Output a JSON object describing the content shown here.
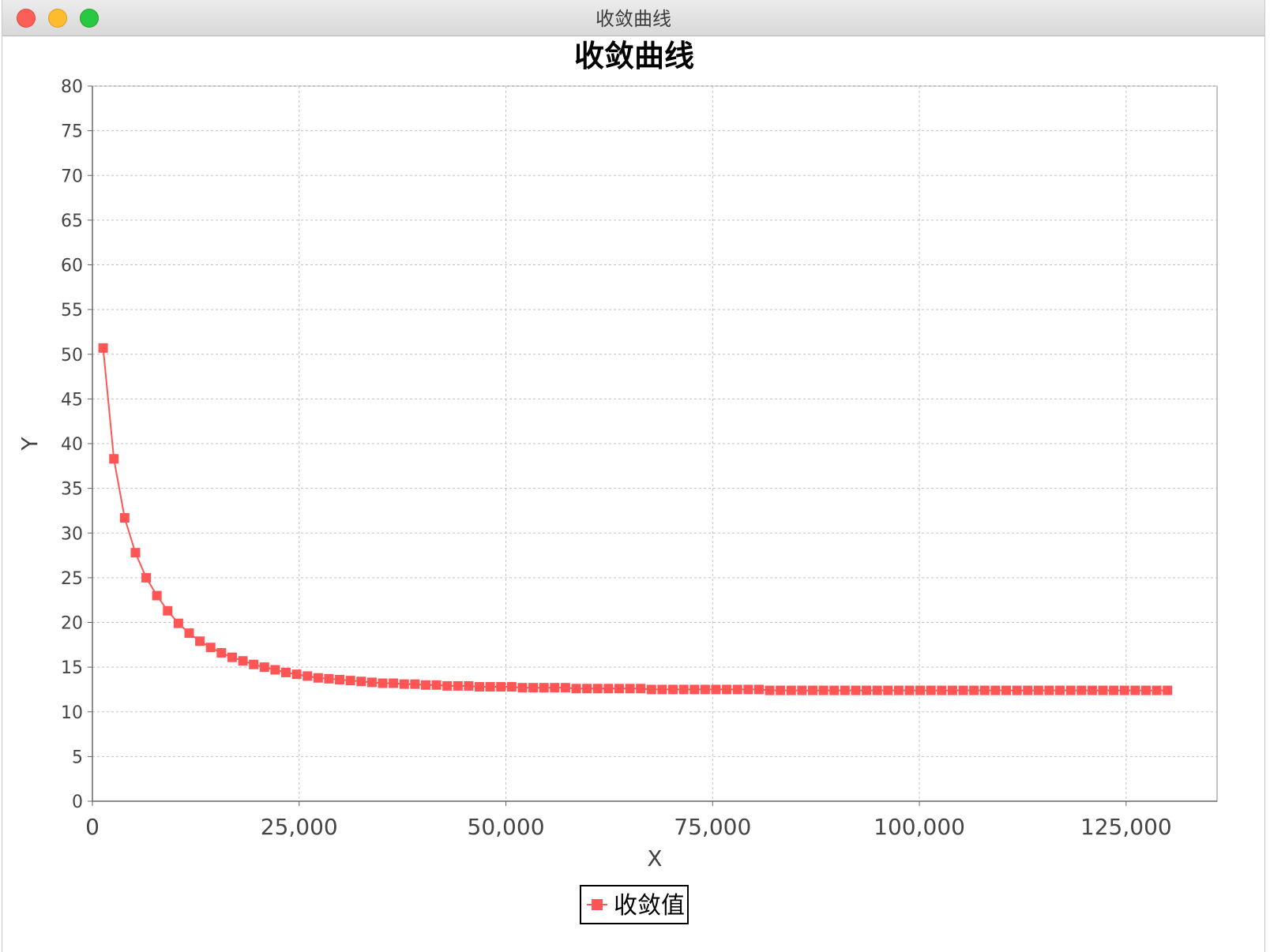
{
  "window": {
    "title": "收敛曲线"
  },
  "colors": {
    "series": "#ff5555",
    "grid": "#c0c0c0",
    "axis": "#666666"
  },
  "chart_data": {
    "type": "line",
    "title": "收敛曲线",
    "xlabel": "X",
    "ylabel": "Y",
    "xlim": [
      0,
      136000
    ],
    "ylim": [
      0,
      80
    ],
    "xticks": [
      0,
      25000,
      50000,
      75000,
      100000,
      125000
    ],
    "xtick_labels": [
      "0",
      "25,000",
      "50,000",
      "75,000",
      "100,000",
      "125,000"
    ],
    "yticks": [
      0,
      5,
      10,
      15,
      20,
      25,
      30,
      35,
      40,
      45,
      50,
      55,
      60,
      65,
      70,
      75,
      80
    ],
    "ytick_labels": [
      "0",
      "5",
      "10",
      "15",
      "20",
      "25",
      "30",
      "35",
      "40",
      "45",
      "50",
      "55",
      "60",
      "65",
      "70",
      "75",
      "80"
    ],
    "grid": true,
    "legend_position": "bottom-center",
    "series": [
      {
        "name": "收敛值",
        "marker": "square",
        "color": "#ff5555",
        "x": [
          1300,
          2600,
          3900,
          5200,
          6500,
          7800,
          9100,
          10400,
          11700,
          13000,
          14300,
          15600,
          16900,
          18200,
          19500,
          20800,
          22100,
          23400,
          24700,
          26000,
          27300,
          28600,
          29900,
          31200,
          32500,
          33800,
          35100,
          36400,
          37700,
          39000,
          40300,
          41600,
          42900,
          44200,
          45500,
          46800,
          48100,
          49400,
          50700,
          52000,
          53300,
          54600,
          55900,
          57200,
          58500,
          59800,
          61100,
          62400,
          63700,
          65000,
          66300,
          67600,
          68900,
          70200,
          71500,
          72800,
          74100,
          75400,
          76700,
          78000,
          79300,
          80600,
          81900,
          83200,
          84500,
          85800,
          87100,
          88400,
          89700,
          91000,
          92300,
          93600,
          94900,
          96200,
          97500,
          98800,
          100100,
          101400,
          102700,
          104000,
          105300,
          106600,
          107900,
          109200,
          110500,
          111800,
          113100,
          114400,
          115700,
          117000,
          118300,
          119600,
          120900,
          122200,
          123500,
          124800,
          126100,
          127400,
          128700,
          130000
        ],
        "y": [
          50.7,
          38.3,
          31.7,
          27.8,
          25.0,
          23.0,
          21.3,
          19.9,
          18.8,
          17.9,
          17.2,
          16.6,
          16.1,
          15.7,
          15.3,
          15.0,
          14.7,
          14.4,
          14.2,
          14.0,
          13.8,
          13.7,
          13.6,
          13.5,
          13.4,
          13.3,
          13.2,
          13.2,
          13.1,
          13.1,
          13.0,
          13.0,
          12.9,
          12.9,
          12.9,
          12.8,
          12.8,
          12.8,
          12.8,
          12.7,
          12.7,
          12.7,
          12.7,
          12.7,
          12.6,
          12.6,
          12.6,
          12.6,
          12.6,
          12.6,
          12.6,
          12.5,
          12.5,
          12.5,
          12.5,
          12.5,
          12.5,
          12.5,
          12.5,
          12.5,
          12.5,
          12.5,
          12.4,
          12.4,
          12.4,
          12.4,
          12.4,
          12.4,
          12.4,
          12.4,
          12.4,
          12.4,
          12.4,
          12.4,
          12.4,
          12.4,
          12.4,
          12.4,
          12.4,
          12.4,
          12.4,
          12.4,
          12.4,
          12.4,
          12.4,
          12.4,
          12.4,
          12.4,
          12.4,
          12.4,
          12.4,
          12.4,
          12.4,
          12.4,
          12.4,
          12.4,
          12.4,
          12.4,
          12.4,
          12.4
        ]
      }
    ]
  }
}
